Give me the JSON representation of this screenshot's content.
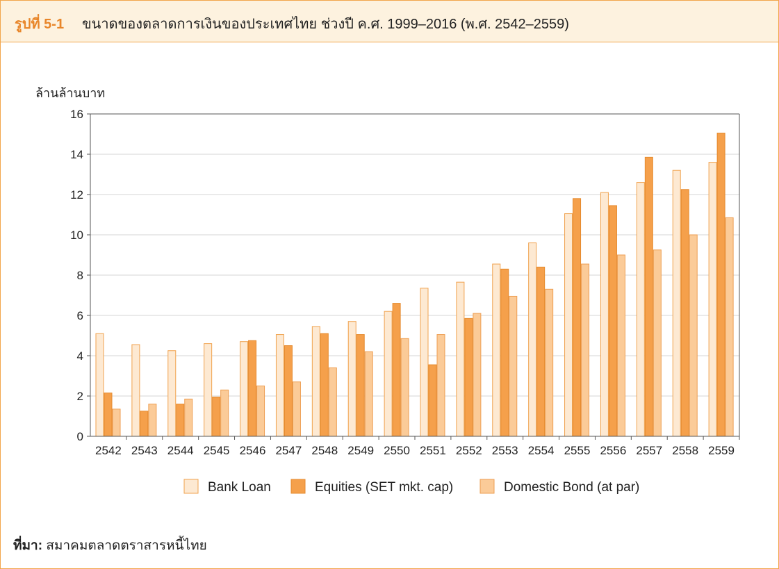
{
  "figure": {
    "label": "รูปที่ 5-1",
    "title": "ขนาดของตลาดการเงินของประเทศไทย ช่วงปี ค.ศ. 1999–2016 (พ.ศ. 2542–2559)"
  },
  "source": {
    "label": "ที่มา:",
    "text": "สมาคมตลาดตราสารหนี้ไทย"
  },
  "chart_data": {
    "type": "bar",
    "ylabel": "ล้านล้านบาท",
    "ylim": [
      0,
      16
    ],
    "yticks": [
      "0",
      "2",
      "4",
      "6",
      "8",
      "10",
      "12",
      "14",
      "16"
    ],
    "grid": true,
    "legend": "bottom-center",
    "categories": [
      "2542",
      "2543",
      "2544",
      "2545",
      "2546",
      "2547",
      "2548",
      "2549",
      "2550",
      "2551",
      "2552",
      "2553",
      "2554",
      "2555",
      "2556",
      "2557",
      "2558",
      "2559"
    ],
    "series": [
      {
        "name": "Bank Loan",
        "color": "#fde9d2",
        "values": [
          5.1,
          4.55,
          4.25,
          4.6,
          4.7,
          5.05,
          5.45,
          5.7,
          6.2,
          7.35,
          7.65,
          8.55,
          9.6,
          11.05,
          12.1,
          12.6,
          13.2,
          13.6
        ]
      },
      {
        "name": "Equities (SET mkt. cap)",
        "color": "#f5a04b",
        "values": [
          2.15,
          1.25,
          1.6,
          1.95,
          4.75,
          4.5,
          5.1,
          5.05,
          6.6,
          3.55,
          5.85,
          8.3,
          8.4,
          11.8,
          11.45,
          13.85,
          12.25,
          15.05
        ]
      },
      {
        "name": "Domestic Bond (at par)",
        "color": "#fbcb98",
        "values": [
          1.35,
          1.6,
          1.85,
          2.3,
          2.5,
          2.7,
          3.4,
          4.2,
          4.85,
          5.05,
          6.1,
          6.95,
          7.3,
          8.55,
          9.0,
          9.25,
          10.0,
          10.85
        ]
      }
    ]
  }
}
